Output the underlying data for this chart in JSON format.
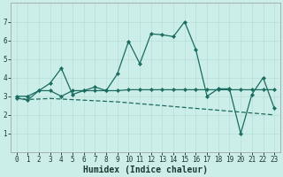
{
  "xlabel": "Humidex (Indice chaleur)",
  "bg_color": "#cceee8",
  "line_color": "#1a6b60",
  "grid_color": "#aad4cc",
  "x": [
    0,
    1,
    2,
    3,
    4,
    5,
    6,
    7,
    8,
    9,
    10,
    11,
    12,
    13,
    14,
    15,
    16,
    17,
    18,
    19,
    20,
    21,
    22,
    23
  ],
  "series1": [
    2.9,
    2.8,
    3.3,
    3.7,
    4.5,
    3.1,
    3.3,
    3.5,
    3.3,
    4.2,
    5.95,
    4.75,
    6.35,
    6.3,
    6.2,
    7.0,
    5.5,
    3.0,
    3.4,
    3.4,
    1.0,
    3.1,
    4.0,
    2.35
  ],
  "series2": [
    3.0,
    3.0,
    3.3,
    3.3,
    3.0,
    3.3,
    3.3,
    3.3,
    3.3,
    3.3,
    3.35,
    3.35,
    3.35,
    3.35,
    3.35,
    3.35,
    3.35,
    3.35,
    3.35,
    3.35,
    3.35,
    3.35,
    3.35,
    3.35
  ],
  "series3": [
    2.9,
    2.83,
    2.85,
    2.88,
    2.85,
    2.82,
    2.79,
    2.76,
    2.73,
    2.7,
    2.65,
    2.6,
    2.55,
    2.5,
    2.45,
    2.4,
    2.35,
    2.3,
    2.25,
    2.2,
    2.15,
    2.1,
    2.05,
    2.0
  ],
  "ylim": [
    0,
    8
  ],
  "xlim": [
    -0.5,
    23.5
  ],
  "yticks": [
    1,
    2,
    3,
    4,
    5,
    6,
    7
  ],
  "xticks": [
    0,
    1,
    2,
    3,
    4,
    5,
    6,
    7,
    8,
    9,
    10,
    11,
    12,
    13,
    14,
    15,
    16,
    17,
    18,
    19,
    20,
    21,
    22,
    23
  ],
  "tick_fontsize": 5.5,
  "label_fontsize": 7.0
}
